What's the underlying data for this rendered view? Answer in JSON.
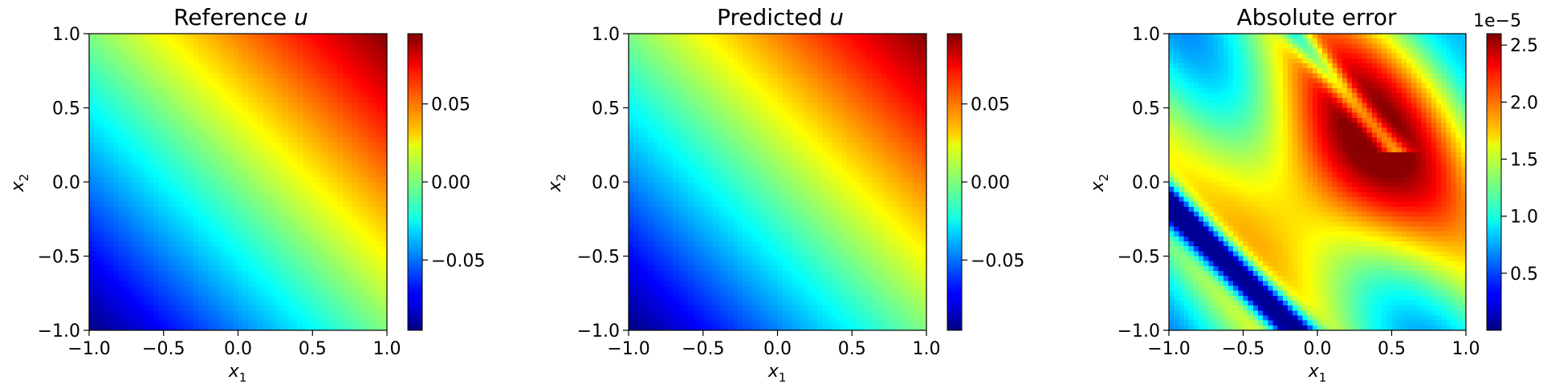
{
  "chart_data": [
    {
      "type": "heatmap",
      "title": "Reference u",
      "title_parts": {
        "text": "Reference ",
        "var": "u"
      },
      "xlabel": {
        "base": "x",
        "sub": "1"
      },
      "ylabel": {
        "base": "x",
        "sub": "2"
      },
      "xlim": [
        -1.0,
        1.0
      ],
      "ylim": [
        -1.0,
        1.0
      ],
      "xticks": [
        -1.0,
        -0.5,
        0.0,
        0.5,
        1.0
      ],
      "xtick_labels": [
        "−1.0",
        "−0.5",
        "0.0",
        "0.5",
        "1.0"
      ],
      "yticks": [
        -1.0,
        -0.5,
        0.0,
        0.5,
        1.0
      ],
      "ytick_labels": [
        "−1.0",
        "−0.5",
        "0.0",
        "0.5",
        "1.0"
      ],
      "colormap": "jet",
      "colorbar": {
        "range": [
          -0.095,
          0.095
        ],
        "ticks": [
          -0.05,
          0.0,
          0.05
        ],
        "tick_labels": [
          "−0.05",
          "0.00",
          "0.05"
        ],
        "offset_label": ""
      },
      "field": {
        "form": "0.095 * (x1 + x2) / 2",
        "grid": [
          -1,
          -0.5,
          0,
          0.5,
          1
        ],
        "values_note": ""
      }
    },
    {
      "type": "heatmap",
      "title": "Predicted u",
      "title_parts": {
        "text": "Predicted ",
        "var": "u"
      },
      "xlabel": {
        "base": "x",
        "sub": "1"
      },
      "ylabel": {
        "base": "x",
        "sub": "2"
      },
      "xlim": [
        -1.0,
        1.0
      ],
      "ylim": [
        -1.0,
        1.0
      ],
      "xticks": [
        -1.0,
        -0.5,
        0.0,
        0.5,
        1.0
      ],
      "xtick_labels": [
        "−1.0",
        "−0.5",
        "0.0",
        "0.5",
        "1.0"
      ],
      "yticks": [
        -1.0,
        -0.5,
        0.0,
        0.5,
        1.0
      ],
      "ytick_labels": [
        "−1.0",
        "−0.5",
        "0.0",
        "0.5",
        "1.0"
      ],
      "colormap": "jet",
      "colorbar": {
        "range": [
          -0.095,
          0.095
        ],
        "ticks": [
          -0.05,
          0.0,
          0.05
        ],
        "tick_labels": [
          "−0.05",
          "0.00",
          "0.05"
        ],
        "offset_label": ""
      }
    },
    {
      "type": "heatmap",
      "title": "Absolute error",
      "title_parts": {
        "text": "Absolute error",
        "var": ""
      },
      "xlabel": {
        "base": "x",
        "sub": "1"
      },
      "ylabel": {
        "base": "x",
        "sub": "2"
      },
      "xlim": [
        -1.0,
        1.0
      ],
      "ylim": [
        -1.0,
        1.0
      ],
      "xticks": [
        -1.0,
        -0.5,
        0.0,
        0.5,
        1.0
      ],
      "xtick_labels": [
        "−1.0",
        "−0.5",
        "0.0",
        "0.5",
        "1.0"
      ],
      "yticks": [
        -1.0,
        -0.5,
        0.0,
        0.5,
        1.0
      ],
      "ytick_labels": [
        "−1.0",
        "−0.5",
        "0.0",
        "0.5",
        "1.0"
      ],
      "colormap": "jet",
      "colorbar": {
        "range": [
          0.0,
          2.6
        ],
        "ticks": [
          0.5,
          1.0,
          1.5,
          2.0,
          2.5
        ],
        "tick_labels": [
          "0.5",
          "1.0",
          "1.5",
          "2.0",
          "2.5"
        ],
        "offset_label": "1e−5"
      }
    }
  ]
}
